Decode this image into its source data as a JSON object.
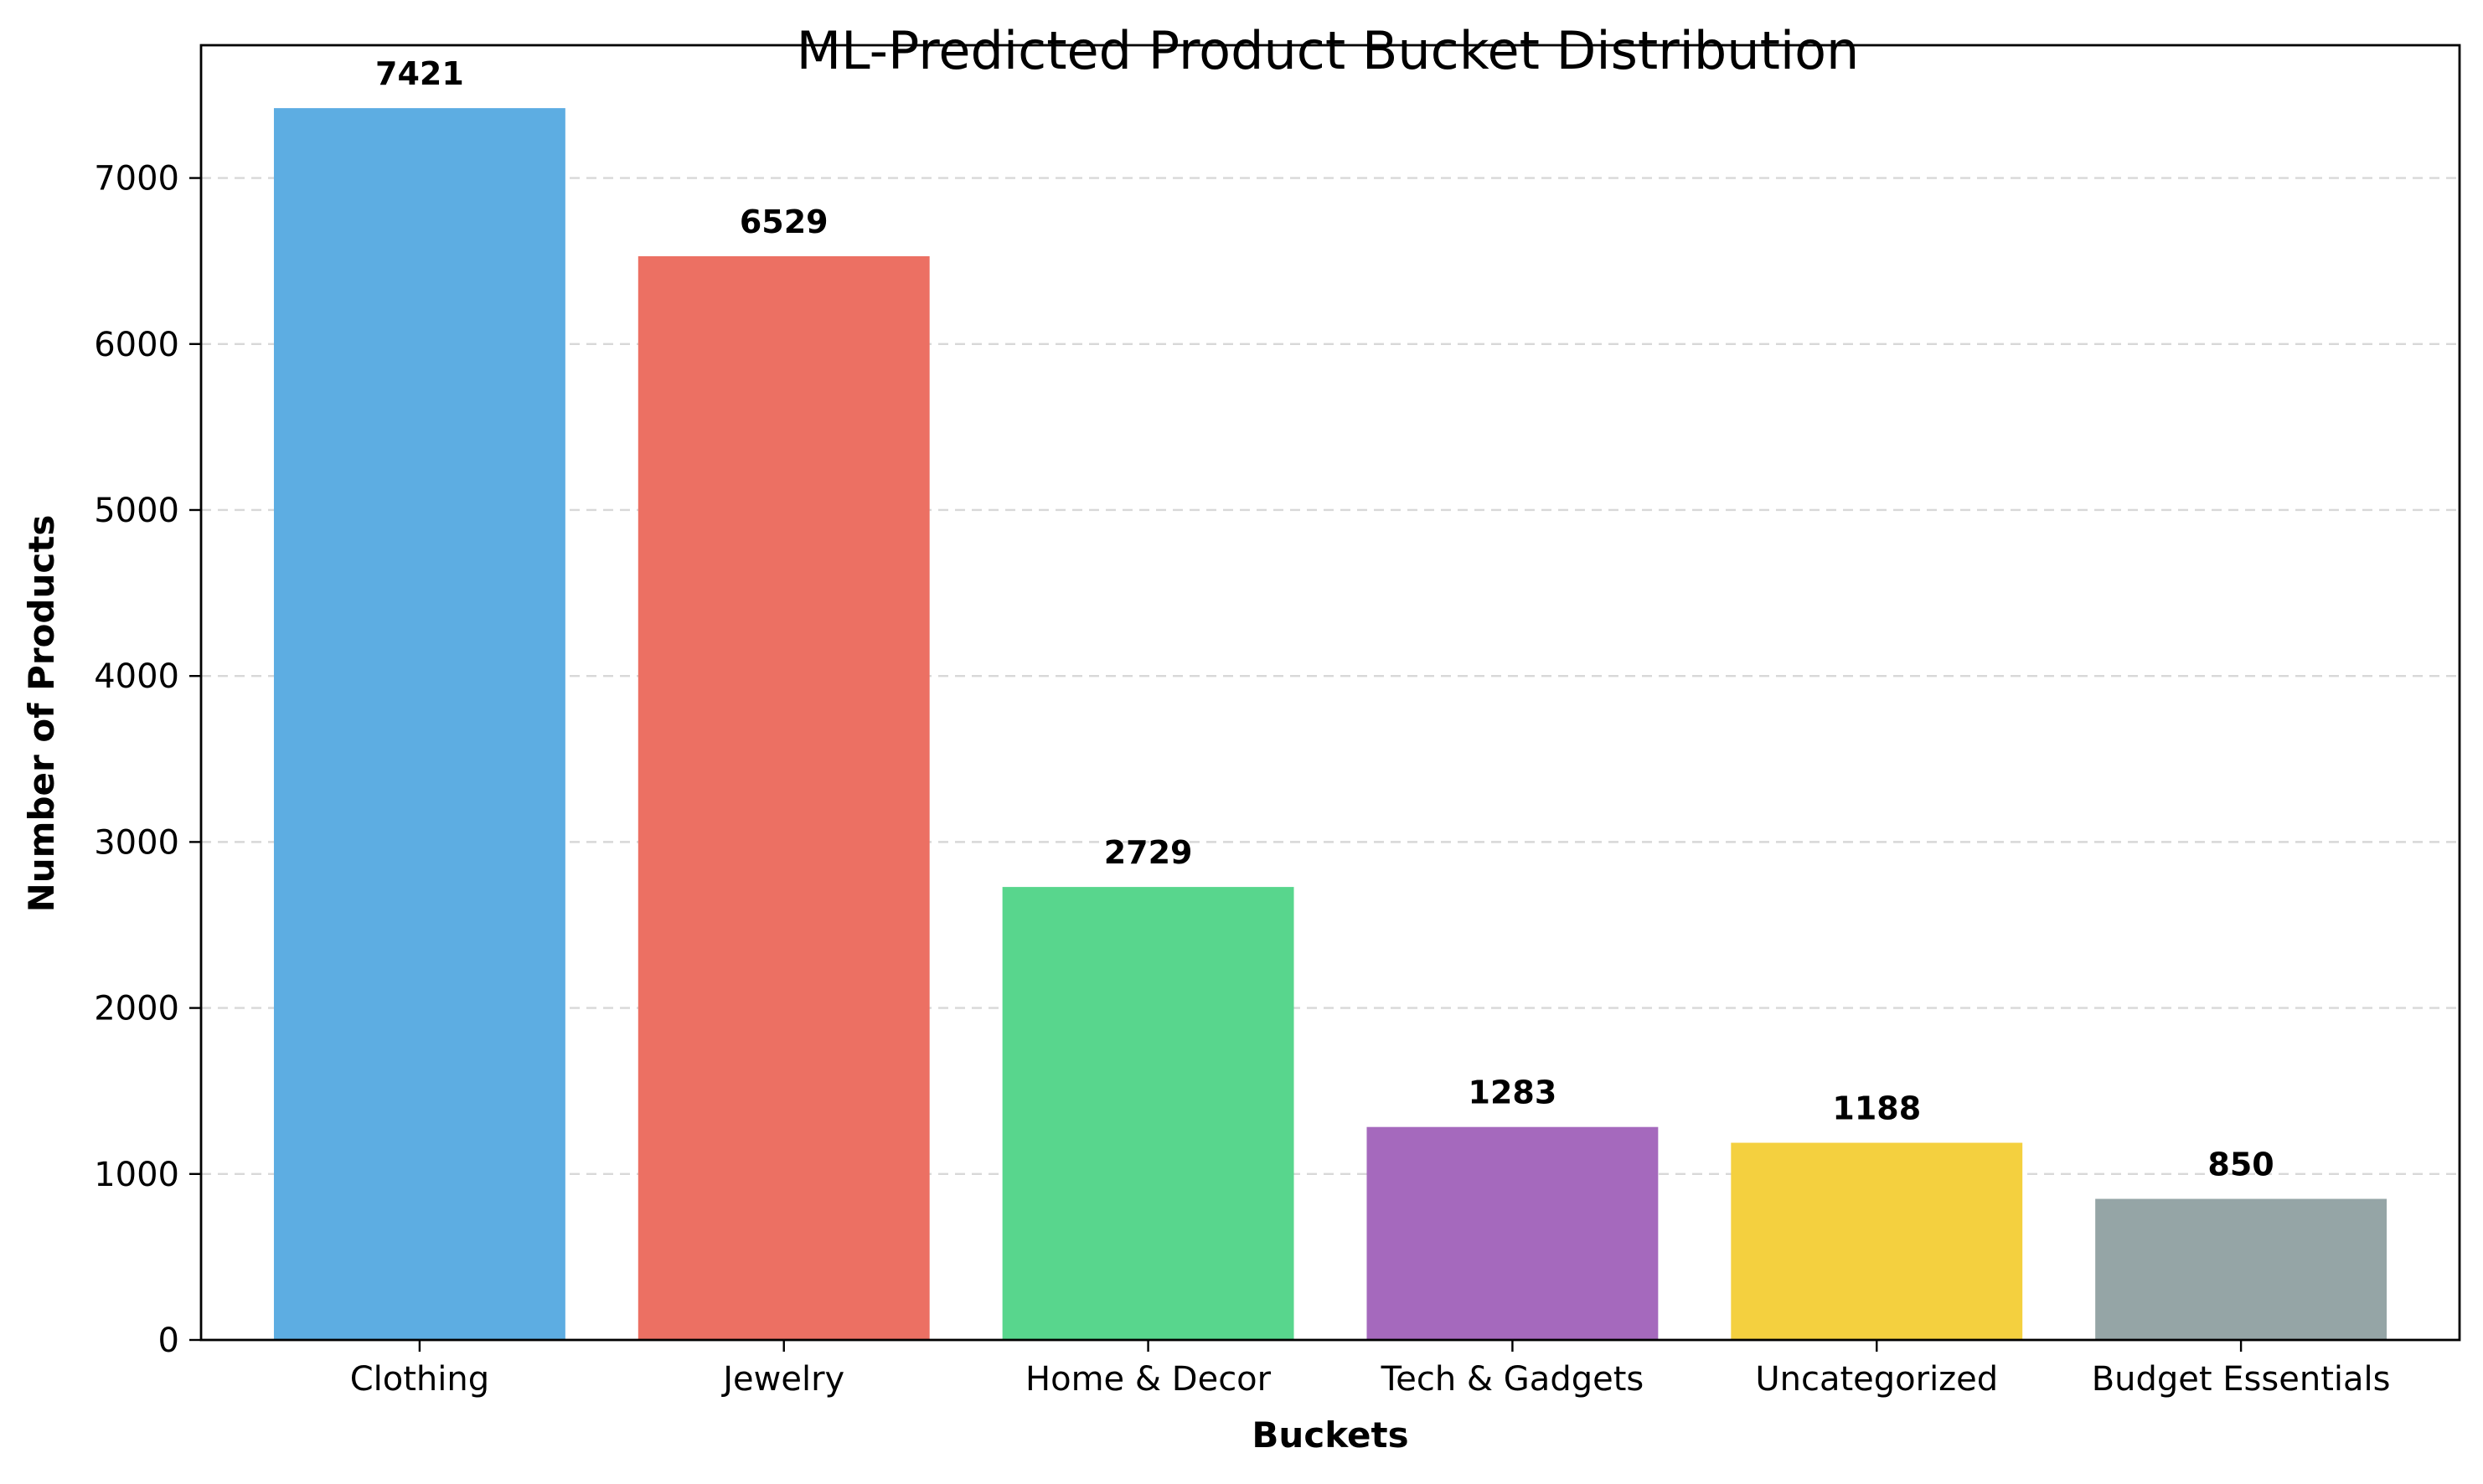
{
  "chart_data": {
    "type": "bar",
    "title": "ML-Predicted Product Bucket Distribution",
    "xlabel": "Buckets",
    "ylabel": "Number of Products",
    "categories": [
      "Clothing",
      "Jewelry",
      "Home & Decor",
      "Tech & Gadgets",
      "Uncategorized",
      "Budget Essentials"
    ],
    "values": [
      7421,
      6529,
      2729,
      1283,
      1188,
      850
    ],
    "data_labels": [
      "7421",
      "6529",
      "2729",
      "1283",
      "1188",
      "850"
    ],
    "colors": [
      "#5dade2",
      "#ec7063",
      "#58d68d",
      "#a569bd",
      "#f4d03f",
      "#95a5a6"
    ],
    "ylim": [
      0,
      7800
    ],
    "yticks": [
      0,
      1000,
      2000,
      3000,
      4000,
      5000,
      6000,
      7000
    ],
    "ytick_labels": [
      "0",
      "1000",
      "2000",
      "3000",
      "4000",
      "5000",
      "6000",
      "7000"
    ],
    "grid": "y-dashed",
    "legend": "none"
  }
}
